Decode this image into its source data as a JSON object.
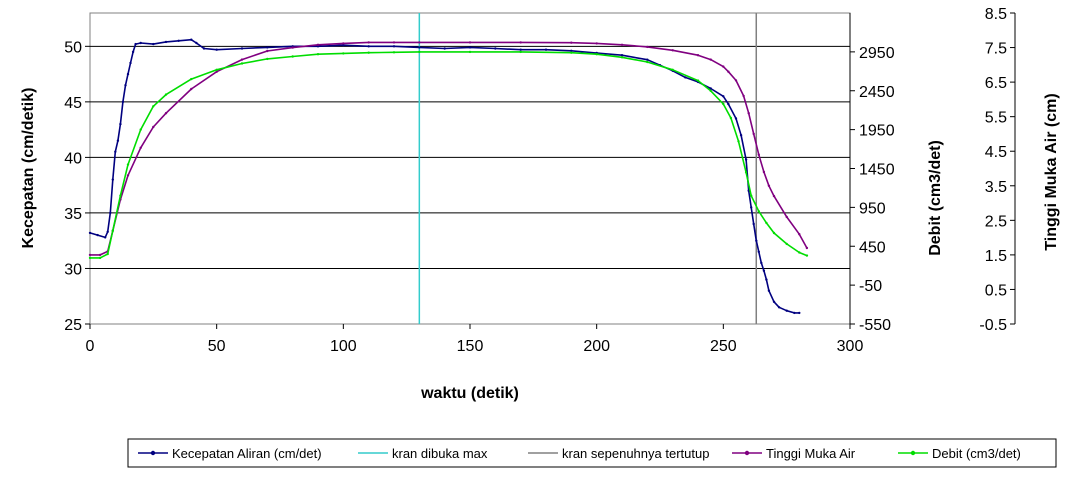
{
  "chart_data": {
    "type": "line",
    "xlabel": "waktu (detik)",
    "ylabel": "Kecepatan (cm/detik)",
    "y2label": "Debit (cm3/det)",
    "y3label": "Tinggi Muka Air (cm)",
    "xlim": [
      0,
      300
    ],
    "ylim": [
      25,
      53
    ],
    "y2lim": [
      -550,
      3450
    ],
    "y3lim": [
      -0.5,
      8.5
    ],
    "x_ticks": [
      "0",
      "50",
      "100",
      "150",
      "200",
      "250",
      "300"
    ],
    "y_ticks": [
      "25",
      "30",
      "35",
      "40",
      "45",
      "50"
    ],
    "y2_ticks": [
      "-550",
      "-50",
      "450",
      "950",
      "1450",
      "1950",
      "2450",
      "2950"
    ],
    "y3_ticks": [
      "-0.5",
      "0.5",
      "1.5",
      "2.5",
      "3.5",
      "4.5",
      "5.5",
      "6.5",
      "7.5",
      "8.5"
    ],
    "grid": "horizontal",
    "legend_position": "bottom",
    "vertical_lines": [
      {
        "name": "kran dibuka max",
        "x": 130,
        "color": "#33cccc"
      },
      {
        "name": "kran sepenuhnya tertutup",
        "x": 263,
        "color": "#808080"
      }
    ],
    "series": [
      {
        "name": "Kecepatan Aliran (cm/det)",
        "axis": "y",
        "color": "#000080",
        "x": [
          0,
          3,
          6,
          7,
          8,
          9,
          10,
          11,
          12,
          13,
          14,
          15,
          16,
          17,
          18,
          20,
          25,
          30,
          35,
          40,
          42,
          45,
          50,
          60,
          70,
          80,
          90,
          100,
          110,
          120,
          130,
          140,
          150,
          160,
          170,
          180,
          190,
          200,
          210,
          220,
          225,
          230,
          235,
          240,
          245,
          250,
          252,
          255,
          257,
          259,
          260,
          261,
          262,
          263,
          264,
          265,
          266,
          267,
          268,
          270,
          272,
          275,
          278,
          280
        ],
        "y": [
          33.2,
          33.0,
          32.8,
          33.3,
          35.0,
          38.0,
          40.5,
          41.5,
          43.0,
          45.0,
          46.5,
          47.5,
          48.5,
          49.5,
          50.2,
          50.3,
          50.2,
          50.4,
          50.5,
          50.6,
          50.3,
          49.8,
          49.7,
          49.8,
          49.9,
          50.0,
          50.0,
          50.1,
          50.0,
          50.0,
          49.9,
          49.8,
          49.9,
          49.8,
          49.7,
          49.7,
          49.6,
          49.4,
          49.2,
          48.8,
          48.3,
          47.8,
          47.2,
          46.8,
          46.2,
          45.5,
          44.8,
          43.5,
          42.0,
          39.8,
          37.0,
          35.5,
          34.0,
          32.5,
          31.5,
          30.5,
          29.8,
          29.0,
          28.0,
          27.0,
          26.5,
          26.2,
          26.0,
          26.0
        ]
      },
      {
        "name": "Tinggi Muka Air",
        "axis": "y3",
        "color": "#800080",
        "x": [
          0,
          4,
          7,
          9,
          12,
          15,
          20,
          25,
          30,
          40,
          50,
          60,
          70,
          80,
          90,
          100,
          110,
          120,
          130,
          150,
          170,
          190,
          200,
          210,
          220,
          230,
          240,
          245,
          250,
          252,
          255,
          258,
          260,
          262,
          264,
          266,
          268,
          270,
          275,
          280,
          283
        ],
        "y": [
          1.5,
          1.5,
          1.6,
          2.2,
          3.1,
          3.8,
          4.6,
          5.2,
          5.6,
          6.3,
          6.8,
          7.15,
          7.4,
          7.5,
          7.58,
          7.62,
          7.65,
          7.65,
          7.65,
          7.65,
          7.65,
          7.64,
          7.62,
          7.58,
          7.52,
          7.42,
          7.28,
          7.15,
          6.95,
          6.8,
          6.55,
          6.1,
          5.6,
          5.0,
          4.4,
          3.9,
          3.5,
          3.2,
          2.6,
          2.1,
          1.7
        ]
      },
      {
        "name": "Debit (cm3/det)",
        "axis": "y2",
        "color": "#00dd00",
        "x": [
          0,
          4,
          7,
          9,
          12,
          15,
          20,
          25,
          30,
          40,
          50,
          60,
          70,
          80,
          90,
          100,
          110,
          120,
          130,
          150,
          170,
          190,
          200,
          210,
          220,
          230,
          240,
          245,
          250,
          253,
          256,
          259,
          261,
          264,
          267,
          270,
          275,
          280,
          283
        ],
        "y": [
          300,
          300,
          350,
          650,
          1100,
          1500,
          1950,
          2250,
          2400,
          2600,
          2720,
          2800,
          2860,
          2890,
          2920,
          2930,
          2940,
          2945,
          2950,
          2950,
          2950,
          2940,
          2920,
          2880,
          2820,
          2720,
          2580,
          2450,
          2280,
          2100,
          1800,
          1400,
          1100,
          900,
          750,
          620,
          480,
          370,
          330
        ]
      }
    ]
  }
}
